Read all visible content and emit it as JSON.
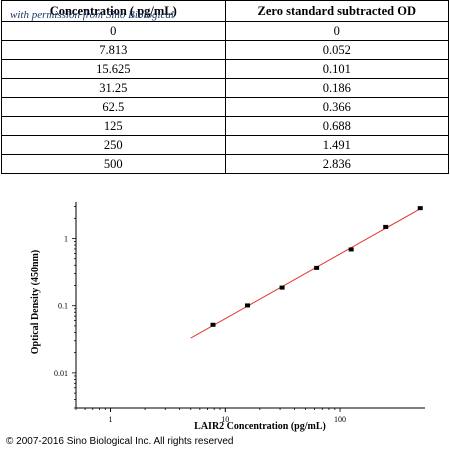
{
  "table": {
    "headers": [
      "Concentration ( pg/mL)",
      "Zero standard subtracted OD"
    ],
    "watermark": "with permission from Sino Biological",
    "rows": [
      [
        "0",
        "0"
      ],
      [
        "7.813",
        "0.052"
      ],
      [
        "15.625",
        "0.101"
      ],
      [
        "31.25",
        "0.186"
      ],
      [
        "62.5",
        "0.366"
      ],
      [
        "125",
        "0.688"
      ],
      [
        "250",
        "1.491"
      ],
      [
        "500",
        "2.836"
      ]
    ]
  },
  "chart_data": {
    "type": "scatter",
    "xlabel": "LAIR2 Concentration (pg/mL)",
    "ylabel": "Optical Density (450nm)",
    "xscale": "log",
    "yscale": "log",
    "xlim": [
      0.5,
      550
    ],
    "ylim": [
      0.003,
      3.5
    ],
    "xticks": [
      1,
      10,
      100
    ],
    "yticks": [
      0.01,
      0.1,
      1
    ],
    "xtick_labels": [
      "1",
      "10",
      "100"
    ],
    "ytick_labels": [
      "0.01",
      "0.1",
      "1"
    ],
    "points": [
      {
        "x": 7.813,
        "y": 0.052
      },
      {
        "x": 15.625,
        "y": 0.101
      },
      {
        "x": 31.25,
        "y": 0.186
      },
      {
        "x": 62.5,
        "y": 0.366
      },
      {
        "x": 125,
        "y": 0.688
      },
      {
        "x": 250,
        "y": 1.491
      },
      {
        "x": 500,
        "y": 2.836
      }
    ],
    "fit_line": {
      "x_start": 5,
      "x_end": 500,
      "color": "#e8322c"
    },
    "marker_color": "#000000"
  },
  "footer": {
    "copyright": "© 2007-2016 Sino Biological Inc. All rights reserved"
  }
}
